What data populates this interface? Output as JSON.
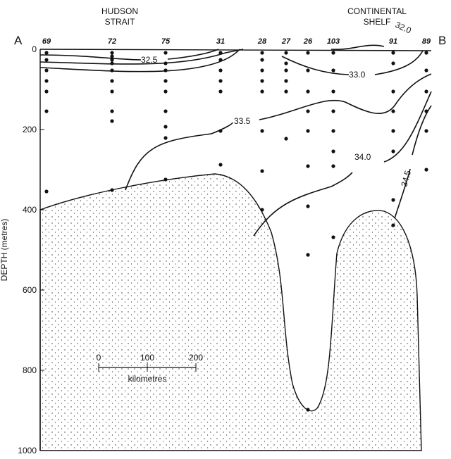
{
  "section_ends": {
    "start": "A",
    "end": "B"
  },
  "regions": [
    {
      "lines": [
        "HUDSON",
        "STRAIT"
      ]
    },
    {
      "lines": [
        "CONTINENTAL",
        "SHELF"
      ]
    }
  ],
  "stations": [
    "69",
    "72",
    "75",
    "31",
    "28",
    "27",
    "26",
    "103",
    "91",
    "89"
  ],
  "axis": {
    "label": "DEPTH (metres)",
    "ticks": [
      "0",
      "200",
      "400",
      "600",
      "800",
      "1000"
    ]
  },
  "isohalines": [
    "32.0",
    "32.5",
    "33.0",
    "33.5",
    "34.0",
    "34.5"
  ],
  "scale_bar": {
    "ticks": [
      "0",
      "100",
      "200"
    ],
    "unit": "kilometres"
  }
}
